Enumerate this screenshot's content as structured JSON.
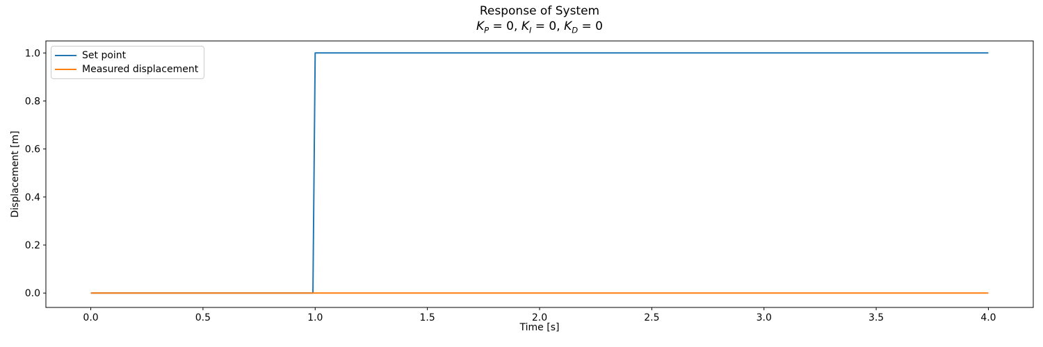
{
  "figure": {
    "title": "Response of System",
    "subtitle": {
      "var1": "K",
      "sub1": "P",
      "seg1": " = 0, ",
      "var2": "K",
      "sub2": "I",
      "seg2": " = 0, ",
      "var3": "K",
      "sub3": "D",
      "seg3": " = 0"
    },
    "xlabel": "Time [s]",
    "ylabel": "Displacement [m]"
  },
  "legend": {
    "position": "upper left",
    "items": [
      {
        "label": "Set point",
        "color": "#1f77b4"
      },
      {
        "label": "Measured displacement",
        "color": "#ff7f0e"
      }
    ]
  },
  "chart_data": {
    "type": "line",
    "title": "Response of System",
    "subtitle": "K_P = 0, K_I = 0, K_D = 0",
    "xlabel": "Time [s]",
    "ylabel": "Displacement [m]",
    "xlim": [
      -0.2,
      4.2
    ],
    "ylim": [
      -0.06,
      1.05
    ],
    "xticks": [
      0.0,
      0.5,
      1.0,
      1.5,
      2.0,
      2.5,
      3.0,
      3.5,
      4.0
    ],
    "yticks": [
      0.0,
      0.2,
      0.4,
      0.6,
      0.8,
      1.0
    ],
    "tick_decimals": 1,
    "grid": false,
    "legend_position": "upper left",
    "series": [
      {
        "name": "Set point",
        "color": "#1f77b4",
        "x": [
          0.0,
          0.99,
          1.0,
          4.0
        ],
        "y": [
          0.0,
          0.0,
          1.0,
          1.0
        ]
      },
      {
        "name": "Measured displacement",
        "color": "#ff7f0e",
        "x": [
          0.0,
          4.0
        ],
        "y": [
          0.0,
          0.0
        ]
      }
    ]
  },
  "colors": {
    "background": "#ffffff",
    "axis": "#000000",
    "text": "#000000",
    "legend_border": "#cccccc"
  }
}
